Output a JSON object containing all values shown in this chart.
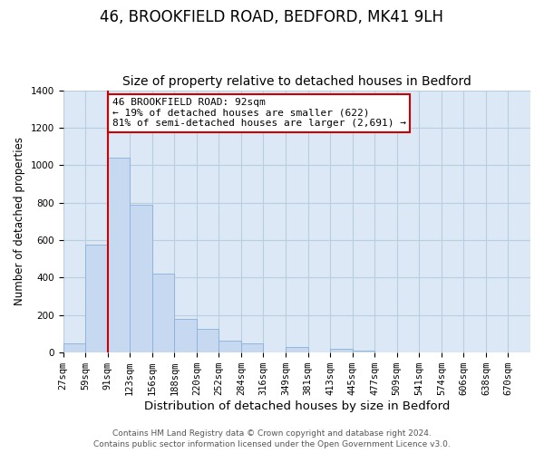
{
  "title1": "46, BROOKFIELD ROAD, BEDFORD, MK41 9LH",
  "title2": "Size of property relative to detached houses in Bedford",
  "xlabel": "Distribution of detached houses by size in Bedford",
  "ylabel": "Number of detached properties",
  "bar_color": "#c6d9f1",
  "bar_edge_color": "#8ab0d8",
  "background_color": "#ffffff",
  "plot_bg_color": "#dce8f5",
  "grid_color": "#b8cfe0",
  "annotation_line_color": "#cc0000",
  "annotation_box_color": "#cc0000",
  "annotation_text": "46 BROOKFIELD ROAD: 92sqm\n← 19% of detached houses are smaller (622)\n81% of semi-detached houses are larger (2,691) →",
  "marker_index": 2,
  "footer_text1": "Contains HM Land Registry data © Crown copyright and database right 2024.",
  "footer_text2": "Contains public sector information licensed under the Open Government Licence v3.0.",
  "categories": [
    "27sqm",
    "59sqm",
    "91sqm",
    "123sqm",
    "156sqm",
    "188sqm",
    "220sqm",
    "252sqm",
    "284sqm",
    "316sqm",
    "349sqm",
    "381sqm",
    "413sqm",
    "445sqm",
    "477sqm",
    "509sqm",
    "541sqm",
    "574sqm",
    "606sqm",
    "638sqm",
    "670sqm"
  ],
  "values": [
    50,
    575,
    1040,
    790,
    420,
    180,
    125,
    65,
    50,
    0,
    30,
    0,
    20,
    10,
    0,
    0,
    0,
    0,
    0,
    0,
    0
  ],
  "ylim": [
    0,
    1400
  ],
  "yticks": [
    0,
    200,
    400,
    600,
    800,
    1000,
    1200,
    1400
  ],
  "title1_fontsize": 12,
  "title2_fontsize": 10,
  "xlabel_fontsize": 9.5,
  "ylabel_fontsize": 8.5,
  "tick_fontsize": 7.5,
  "annotation_fontsize": 8,
  "footer_fontsize": 6.5
}
